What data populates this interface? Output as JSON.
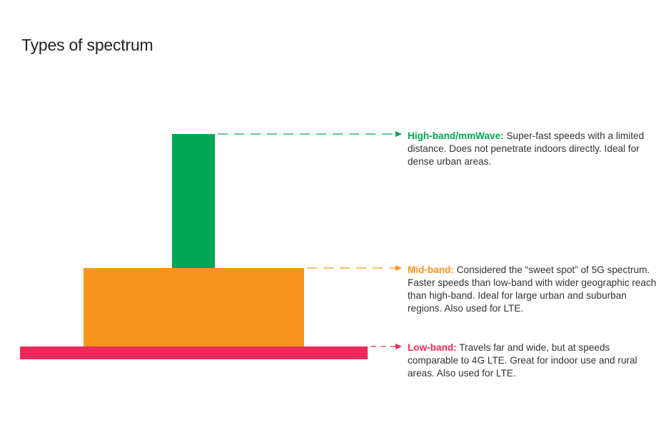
{
  "title": "Types of spectrum",
  "colors": {
    "high": "#00a651",
    "mid": "#f7941d",
    "low": "#ee2a5a"
  },
  "bands": {
    "high": {
      "name": "High-band/mmWave:",
      "description": " Super-fast speeds with a limited distance. Does not penetrate indoors directly. Ideal for dense urban areas."
    },
    "mid": {
      "name": "Mid-band:",
      "description": " Considered the “sweet spot” of 5G spectrum. Faster speeds than low-band with wider geographic reach than high-band. Ideal for large urban and suburban regions. Also used for LTE."
    },
    "low": {
      "name": "Low-band:",
      "description": " Travels far and wide, but at speeds comparable to 4G LTE. Great for indoor use and rural areas. Also used for LTE."
    }
  }
}
